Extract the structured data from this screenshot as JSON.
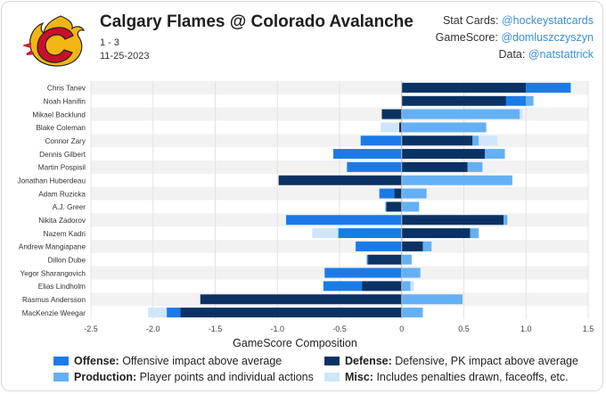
{
  "header": {
    "title": "Calgary Flames @ Colorado Avalanche",
    "score": "1 - 3",
    "date": "11-25-2023"
  },
  "credits": [
    {
      "label": "Stat Cards:",
      "handle": "@hockeystatcards"
    },
    {
      "label": "GameScore:",
      "handle": "@domluszczyszyn"
    },
    {
      "label": "Data:",
      "handle": "@natstattrick"
    }
  ],
  "colors": {
    "offense": "#1a7be8",
    "defense": "#0a3264",
    "production": "#64b0f5",
    "misc": "#cfe5fb",
    "logo_red": "#c8102e",
    "logo_yellow": "#f5b512",
    "link": "#3b8fd6"
  },
  "legend": [
    {
      "key": "offense",
      "name": "Offense:",
      "desc": "Offensive impact above average"
    },
    {
      "key": "defense",
      "name": "Defense:",
      "desc": "Defensive, PK impact above average"
    },
    {
      "key": "production",
      "name": "Production:",
      "desc": "Player points and individual actions"
    },
    {
      "key": "misc",
      "name": "Misc:",
      "desc": "Includes penalties drawn, faceoffs, etc."
    }
  ],
  "chart_data": {
    "type": "bar",
    "orientation": "horizontal",
    "stacked": "diverging",
    "xlabel": "GameScore Composition",
    "xlim": [
      -2.5,
      1.5
    ],
    "xticks": [
      -2.5,
      -2.0,
      -1.5,
      -1.0,
      -0.5,
      0,
      0.5,
      1.0,
      1.5
    ],
    "xtick_labels": [
      "-2.5",
      "-2.0",
      "-1.5",
      "-1.0",
      "-0.5",
      "0",
      "0.5",
      "1.0",
      "1.5"
    ],
    "categories": [
      "Chris Tanev",
      "Noah Hanifin",
      "Mikael Backlund",
      "Blake Coleman",
      "Connor Zary",
      "Dennis Gilbert",
      "Martin Pospisil",
      "Jonathan Huberdeau",
      "Adam Ruzicka",
      "A.J. Greer",
      "Nikita Zadorov",
      "Nazem Kadri",
      "Andrew Mangiapane",
      "Dillon Dube",
      "Yegor Sharangovich",
      "Elias Lindholm",
      "Rasmus Andersson",
      "MacKenzie Weegar"
    ],
    "series": [
      {
        "name": "Defense",
        "key": "defense",
        "values": [
          1.0,
          0.84,
          -0.16,
          -0.02,
          0.57,
          0.67,
          0.53,
          -0.99,
          -0.06,
          -0.12,
          0.82,
          0.55,
          0.17,
          -0.27,
          0.0,
          -0.32,
          -1.62,
          -1.78
        ]
      },
      {
        "name": "Offense",
        "key": "offense",
        "values": [
          0.36,
          0.16,
          0.0,
          0.0,
          -0.33,
          -0.55,
          -0.44,
          0.0,
          -0.12,
          -0.01,
          -0.93,
          -0.51,
          -0.37,
          -0.01,
          -0.62,
          -0.31,
          0.0,
          -0.11
        ]
      },
      {
        "name": "Production",
        "key": "production",
        "values": [
          0.0,
          0.06,
          0.95,
          0.68,
          0.05,
          0.16,
          0.12,
          0.89,
          0.2,
          0.14,
          0.03,
          0.07,
          0.07,
          0.08,
          0.15,
          0.07,
          0.49,
          0.17
        ]
      },
      {
        "name": "Misc",
        "key": "misc",
        "values": [
          0.0,
          0.0,
          0.02,
          -0.15,
          0.15,
          0.0,
          0.0,
          0.0,
          0.0,
          0.0,
          0.0,
          -0.21,
          0.0,
          0.0,
          0.0,
          0.03,
          0.0,
          -0.15
        ]
      }
    ]
  }
}
